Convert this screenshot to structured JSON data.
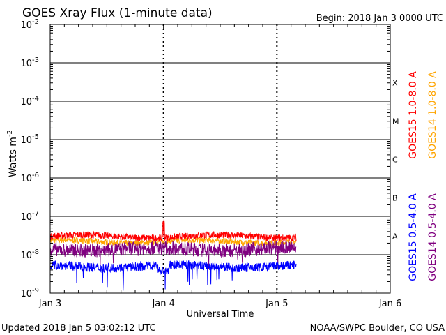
{
  "chart_data": {
    "type": "line",
    "title": "GOES Xray Flux (1-minute data)",
    "begin_label": "Begin:  2018 Jan 3 0000 UTC",
    "xlabel": "Universal Time",
    "ylabel_main": "Watts m",
    "ylabel_exp": "-2",
    "x_ticks": [
      "Jan 3",
      "Jan 4",
      "Jan 5",
      "Jan 6"
    ],
    "x_range_days": [
      0,
      3
    ],
    "y_log_range": [
      -9,
      -2
    ],
    "y_ticks": [
      {
        "base": "10",
        "exp": "-2"
      },
      {
        "base": "10",
        "exp": "-3"
      },
      {
        "base": "10",
        "exp": "-4"
      },
      {
        "base": "10",
        "exp": "-5"
      },
      {
        "base": "10",
        "exp": "-6"
      },
      {
        "base": "10",
        "exp": "-7"
      },
      {
        "base": "10",
        "exp": "-8"
      },
      {
        "base": "10",
        "exp": "-9"
      }
    ],
    "flare_classes": [
      {
        "label": "X",
        "log_center": -3.5
      },
      {
        "label": "M",
        "log_center": -4.5
      },
      {
        "label": "C",
        "log_center": -5.5
      },
      {
        "label": "B",
        "log_center": -6.5
      },
      {
        "label": "A",
        "log_center": -7.5
      }
    ],
    "series": [
      {
        "name": "GOES15 1.0-8.0 A",
        "color": "#ff0000",
        "approx_flux": 3e-08,
        "end_day": 2.17
      },
      {
        "name": "GOES14 1.0-8.0 A",
        "color": "#ffa500",
        "approx_flux": 2.2e-08,
        "end_day": 2.17
      },
      {
        "name": "GOES15 0.5-4.0 A",
        "color": "#0000ff",
        "approx_flux": 5e-09,
        "end_day": 2.17
      },
      {
        "name": "GOES14 0.5-4.0 A",
        "color": "#800080",
        "approx_flux": 1.4e-08,
        "end_day": 2.17
      }
    ],
    "updated_label": "Updated 2018 Jan  5 03:02:12 UTC",
    "source_label": "NOAA/SWPC Boulder, CO USA"
  }
}
